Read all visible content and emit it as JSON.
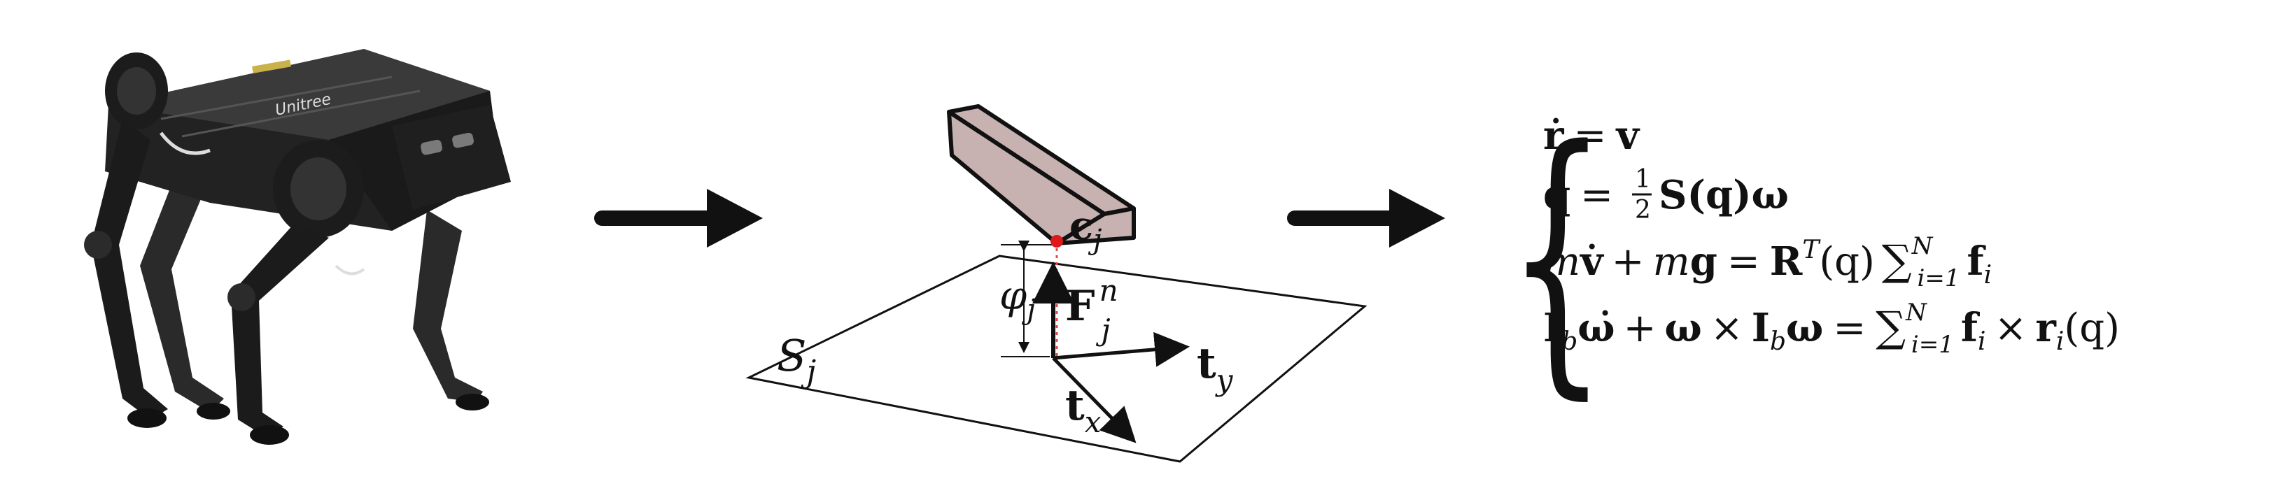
{
  "robot": {
    "brand_text": "Unitree",
    "icon": "quadruped-robot-icon"
  },
  "arrows": {
    "icon": "right-arrow-icon"
  },
  "contact_diagram": {
    "contact_point_label": {
      "base": "c",
      "sub": "j"
    },
    "surface_label": {
      "base": "S",
      "sub": "j"
    },
    "distance_label": {
      "base": "φ",
      "sub": "j"
    },
    "force_label": {
      "base": "F",
      "sup": "n",
      "sub": "j"
    },
    "tangent_y_label": {
      "base": "t",
      "sub": "y"
    },
    "tangent_x_label": {
      "base": "t",
      "sub": "x"
    },
    "colors": {
      "foot_fill": "#c7b1b1",
      "contact_point": "#e01818",
      "ink": "#111111"
    }
  },
  "equations": {
    "brace": "{",
    "eq1": {
      "lhs": "ṙ",
      "eqsign": "=",
      "rhs": "v"
    },
    "eq2": {
      "lhs": "q̇",
      "eqsign": "=",
      "num": "1",
      "den": "2",
      "rhs": "S(q)ω"
    },
    "eq3": {
      "lhs_a": "m",
      "lhs_b": "v̇",
      "plus": "+",
      "lhs_c": "m",
      "lhs_d": "g",
      "eqsign": "=",
      "R": "R",
      "T": "T",
      "q": "(q)",
      "sum": "∑",
      "sum_top": "N",
      "sum_bottom": "i=1",
      "f": "f",
      "i": "i"
    },
    "eq4": {
      "I1": "I",
      "b1": "b",
      "wdot": "ω̇",
      "plus": "+",
      "w": "ω",
      "times1": "×",
      "I2": "I",
      "b2": "b",
      "w2": "ω",
      "eqsign": "=",
      "sum": "∑",
      "sum_top": "N",
      "sum_bottom": "i=1",
      "f": "f",
      "i1": "i",
      "times2": "×",
      "r": "r",
      "i2": "i",
      "q": "(q)"
    }
  }
}
